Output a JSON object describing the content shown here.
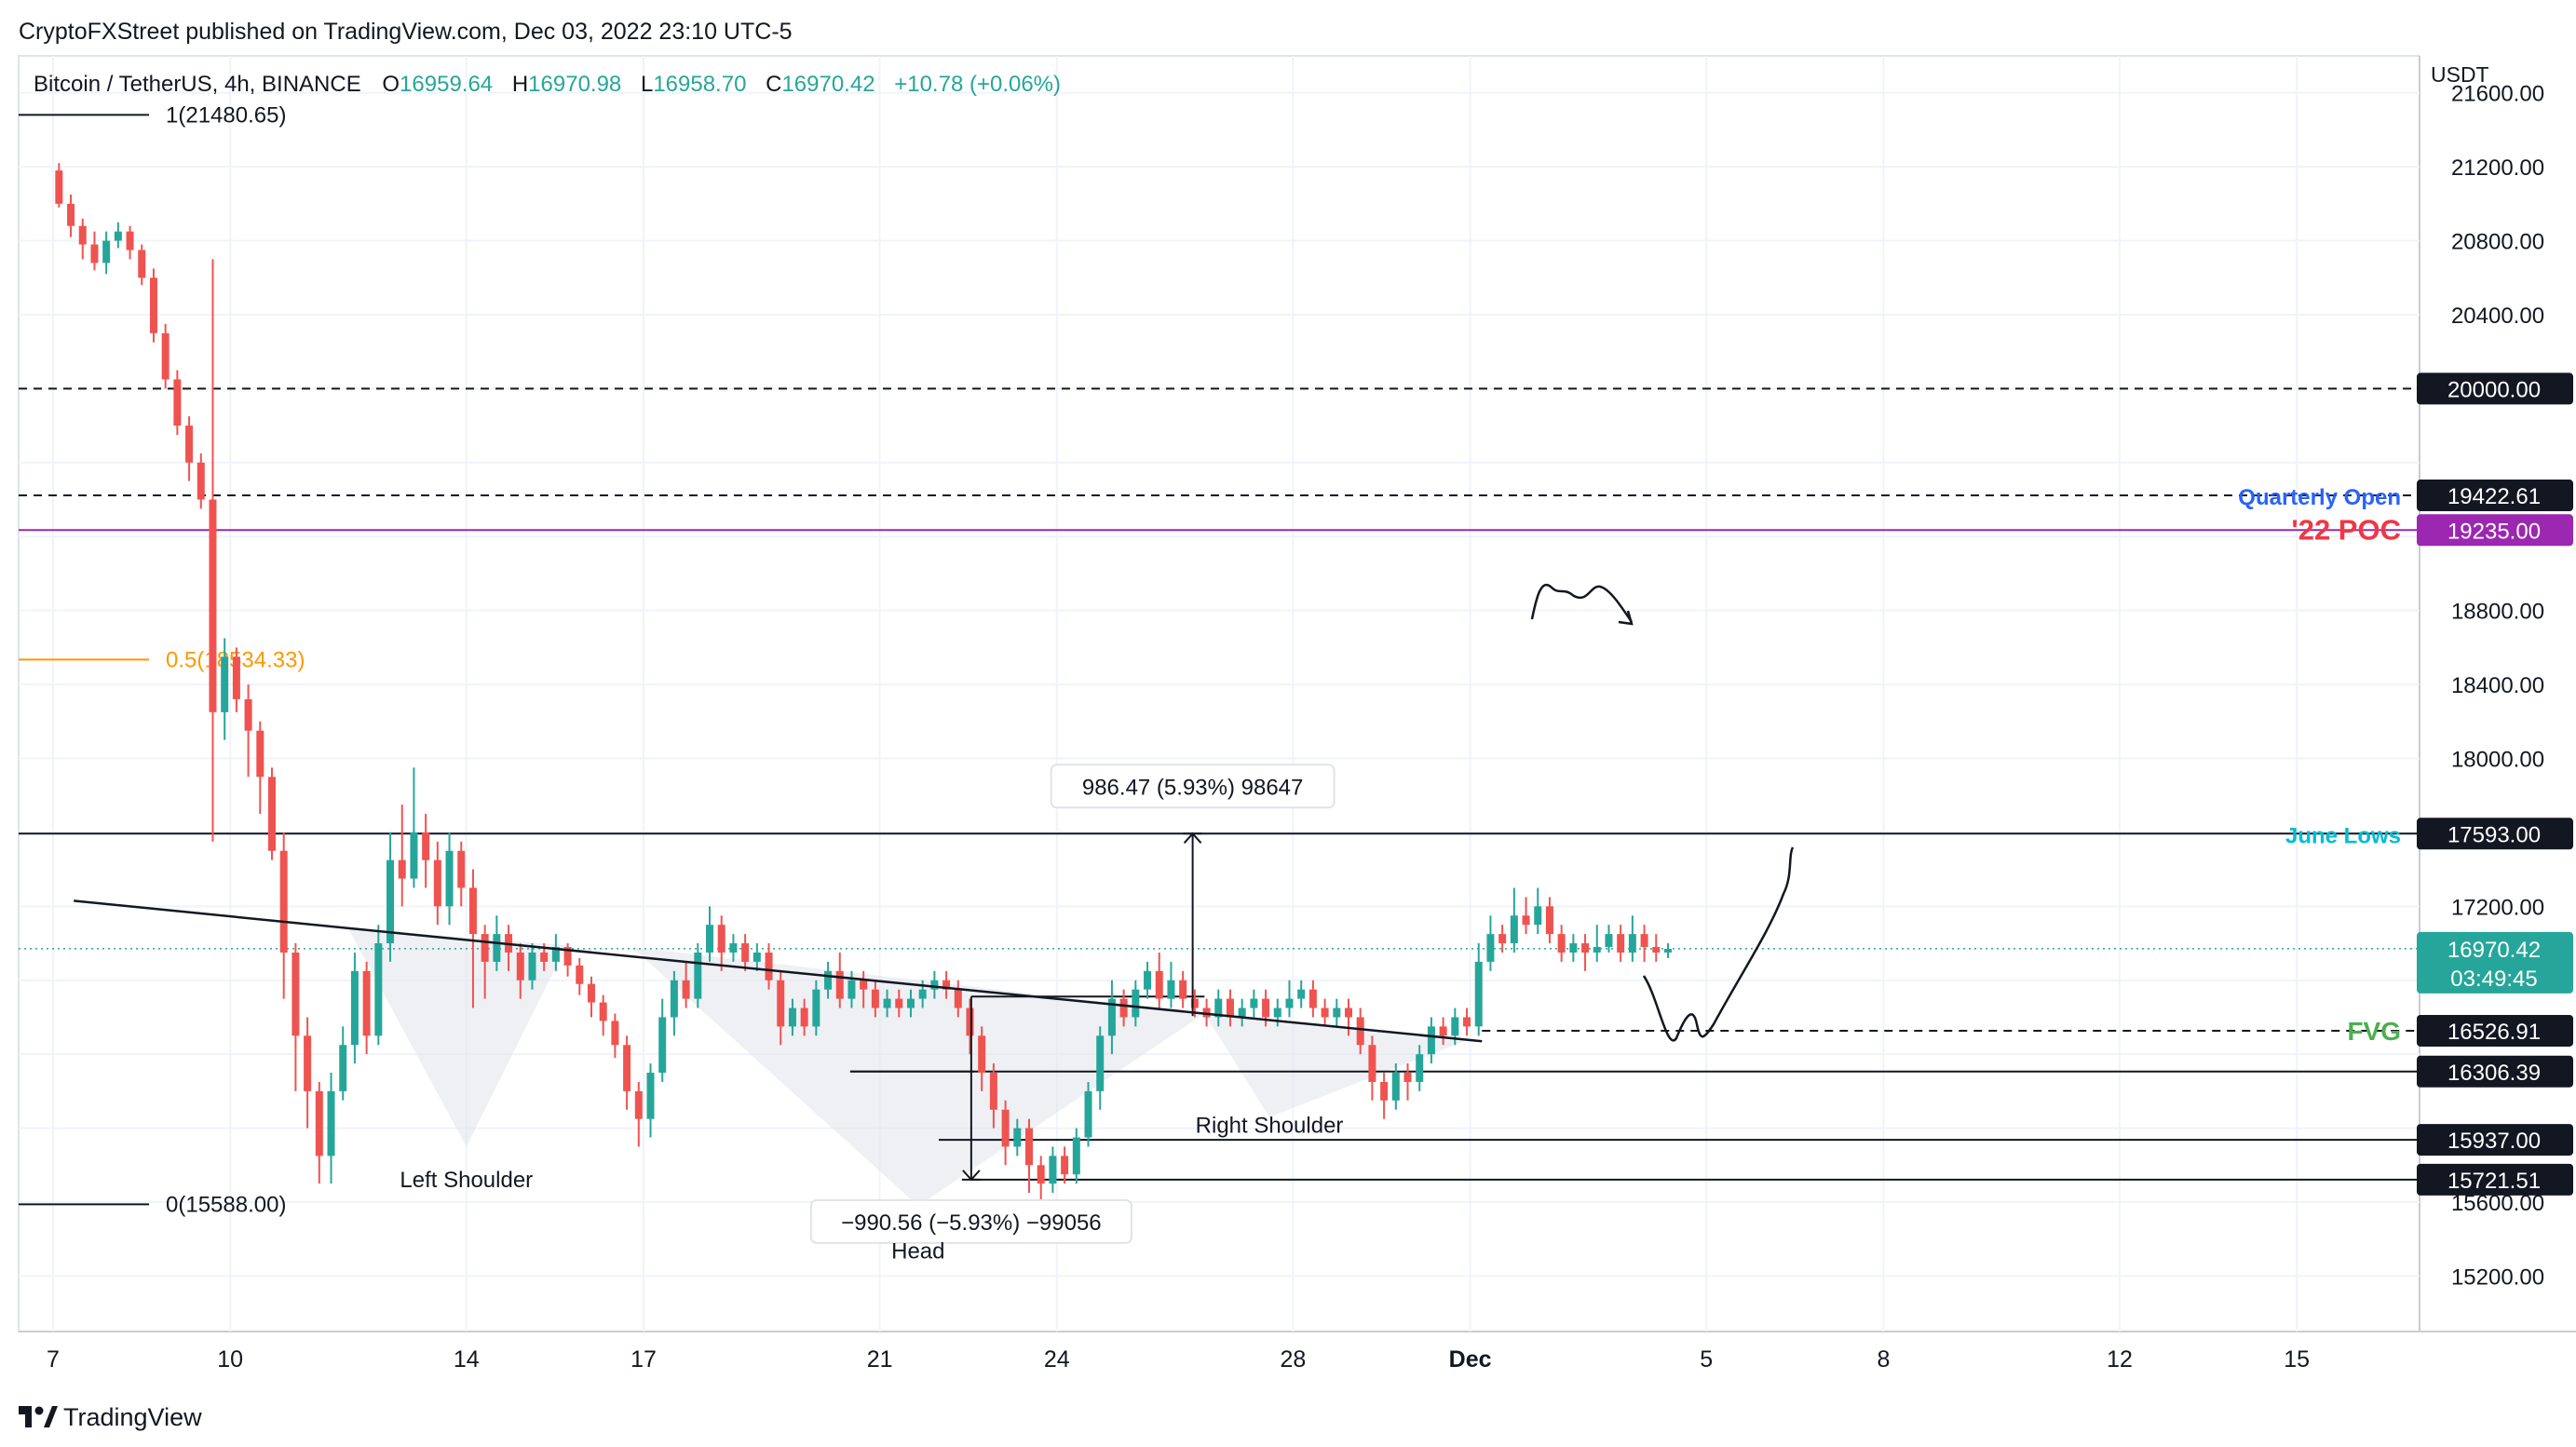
{
  "header": {
    "publisher": "CryptoFXStreet published on TradingView.com, Dec 03, 2022 23:10 UTC-5",
    "symbol": "Bitcoin / TetherUS, 4h, BINANCE",
    "o_label": "O",
    "o_value": "16959.64",
    "h_label": "H",
    "h_value": "16970.98",
    "l_label": "L",
    "l_value": "16958.70",
    "c_label": "C",
    "c_value": "16970.42",
    "change": "+10.78 (+0.06%)"
  },
  "footer": {
    "brand": "TradingView"
  },
  "colors": {
    "up": "#26a69a",
    "down": "#ef5350",
    "poc": "#9c27b0",
    "quarterly": "#2962ff",
    "june": "#00bcd4",
    "fvg": "#4caf50",
    "fib_mid": "#ff9800",
    "poc_text": "#f23645"
  },
  "chart_data": {
    "type": "candlestick",
    "instrument": "Bitcoin / TetherUS",
    "timeframe": "4h",
    "currency": "USDT",
    "ylim": [
      14900,
      21800
    ],
    "y_ticks": [
      "21600.00",
      "21200.00",
      "20800.00",
      "20400.00",
      "18800.00",
      "18400.00",
      "18000.00",
      "17200.00",
      "15600.00",
      "15200.00"
    ],
    "x_ticks": [
      {
        "label": "7",
        "day": 7
      },
      {
        "label": "10",
        "day": 10
      },
      {
        "label": "14",
        "day": 14
      },
      {
        "label": "17",
        "day": 17
      },
      {
        "label": "21",
        "day": 21
      },
      {
        "label": "24",
        "day": 24
      },
      {
        "label": "28",
        "day": 28
      },
      {
        "label": "Dec",
        "day": 31
      },
      {
        "label": "5",
        "day": 35
      },
      {
        "label": "8",
        "day": 38
      },
      {
        "label": "12",
        "day": 42
      },
      {
        "label": "15",
        "day": 45
      }
    ],
    "price_labels": [
      {
        "value": 20000.0,
        "text": "20000.00",
        "style": "dashed"
      },
      {
        "value": 19422.61,
        "text": "19422.61",
        "style": "dashed",
        "annotation": "Quarterly Open"
      },
      {
        "value": 19235.0,
        "text": "19235.00",
        "style": "poc",
        "annotation": "'22 POC"
      },
      {
        "value": 17593.0,
        "text": "17593.00",
        "style": "solid",
        "annotation": "June Lows"
      },
      {
        "value": 16526.91,
        "text": "16526.91",
        "style": "dashed",
        "annotation": "FVG"
      },
      {
        "value": 16306.39,
        "text": "16306.39",
        "style": "solid"
      },
      {
        "value": 15937.0,
        "text": "15937.00",
        "style": "solid"
      },
      {
        "value": 15721.51,
        "text": "15721.51",
        "style": "solid"
      }
    ],
    "last_price": {
      "value": 16970.42,
      "text": "16970.42",
      "countdown": "03:49:45"
    },
    "fib": [
      {
        "label": "1(21480.65)",
        "value": 21480.65
      },
      {
        "label": "0.5(18534.33)",
        "value": 18534.33
      },
      {
        "label": "0(15588.00)",
        "value": 15588.0
      }
    ],
    "measure_up": {
      "label": "986.47 (5.93%) 98647",
      "from": 16606.53,
      "to": 17593.0,
      "day": 26.3
    },
    "measure_down": {
      "label": "−990.56 (−5.93%) −99056",
      "from": 16712.07,
      "to": 15721.51,
      "day": 22.55
    },
    "pattern_labels": [
      {
        "text": "Left Shoulder",
        "day": 14.0,
        "value": 15680
      },
      {
        "text": "Head",
        "day": 21.65,
        "value": 15295
      },
      {
        "text": "Right Shoulder",
        "day": 27.6,
        "value": 15975
      }
    ],
    "neckline": {
      "from": {
        "day": 7.35,
        "value": 17230
      },
      "to": {
        "day": 31.2,
        "value": 16470
      }
    },
    "candles": [
      [
        21180,
        21000,
        21220,
        20980
      ],
      [
        21000,
        20880,
        21050,
        20820
      ],
      [
        20880,
        20780,
        20920,
        20700
      ],
      [
        20780,
        20680,
        20850,
        20640
      ],
      [
        20680,
        20800,
        20850,
        20620
      ],
      [
        20800,
        20850,
        20900,
        20760
      ],
      [
        20850,
        20750,
        20880,
        20700
      ],
      [
        20750,
        20600,
        20780,
        20560
      ],
      [
        20600,
        20300,
        20650,
        20250
      ],
      [
        20300,
        20050,
        20350,
        20000
      ],
      [
        20050,
        19800,
        20100,
        19750
      ],
      [
        19800,
        19600,
        19850,
        19500
      ],
      [
        19600,
        19400,
        19650,
        19350
      ],
      [
        19400,
        18250,
        20700,
        17550
      ],
      [
        18250,
        18550,
        18650,
        18100
      ],
      [
        18550,
        18320,
        18600,
        18250
      ],
      [
        18320,
        18150,
        18400,
        17900
      ],
      [
        18150,
        17900,
        18200,
        17700
      ],
      [
        17900,
        17500,
        17950,
        17450
      ],
      [
        17500,
        16950,
        17600,
        16700
      ],
      [
        16950,
        16500,
        17000,
        16200
      ],
      [
        16500,
        16200,
        16600,
        16000
      ],
      [
        16200,
        15850,
        16250,
        15700
      ],
      [
        15850,
        16200,
        16300,
        15700
      ],
      [
        16200,
        16450,
        16550,
        16150
      ],
      [
        16450,
        16850,
        16950,
        16350
      ],
      [
        16850,
        16500,
        16900,
        16400
      ],
      [
        16500,
        17000,
        17100,
        16450
      ],
      [
        17000,
        17450,
        17600,
        16900
      ],
      [
        17450,
        17350,
        17750,
        17200
      ],
      [
        17350,
        17600,
        17950,
        17300
      ],
      [
        17600,
        17450,
        17700,
        17300
      ],
      [
        17450,
        17200,
        17550,
        17100
      ],
      [
        17200,
        17500,
        17600,
        17100
      ],
      [
        17500,
        17300,
        17550,
        17200
      ],
      [
        17300,
        17050,
        17400,
        16650
      ],
      [
        17050,
        16900,
        17100,
        16700
      ],
      [
        16900,
        17050,
        17150,
        16850
      ],
      [
        17050,
        16950,
        17100,
        16850
      ],
      [
        16950,
        16800,
        17000,
        16700
      ],
      [
        16800,
        16950,
        17000,
        16750
      ],
      [
        16950,
        16900,
        17000,
        16850
      ],
      [
        16900,
        16980,
        17050,
        16850
      ],
      [
        16980,
        16880,
        17000,
        16820
      ],
      [
        16880,
        16780,
        16920,
        16720
      ],
      [
        16780,
        16680,
        16820,
        16600
      ],
      [
        16680,
        16580,
        16720,
        16500
      ],
      [
        16580,
        16450,
        16620,
        16380
      ],
      [
        16450,
        16200,
        16500,
        16100
      ],
      [
        16200,
        16050,
        16250,
        15900
      ],
      [
        16050,
        16300,
        16350,
        15950
      ],
      [
        16300,
        16600,
        16700,
        16250
      ],
      [
        16600,
        16800,
        16850,
        16500
      ],
      [
        16800,
        16700,
        16900,
        16650
      ],
      [
        16700,
        16950,
        17000,
        16650
      ],
      [
        16950,
        17100,
        17200,
        16900
      ],
      [
        17100,
        16950,
        17150,
        16850
      ],
      [
        16950,
        17000,
        17050,
        16900
      ],
      [
        17000,
        16900,
        17050,
        16850
      ],
      [
        16900,
        16950,
        17000,
        16850
      ],
      [
        16950,
        16800,
        17000,
        16750
      ],
      [
        16800,
        16550,
        16850,
        16450
      ],
      [
        16550,
        16650,
        16700,
        16500
      ],
      [
        16650,
        16550,
        16700,
        16500
      ],
      [
        16550,
        16750,
        16800,
        16500
      ],
      [
        16750,
        16850,
        16900,
        16700
      ],
      [
        16850,
        16700,
        16950,
        16650
      ],
      [
        16700,
        16800,
        16850,
        16650
      ],
      [
        16800,
        16750,
        16850,
        16650
      ],
      [
        16750,
        16650,
        16800,
        16600
      ],
      [
        16650,
        16700,
        16750,
        16600
      ],
      [
        16700,
        16650,
        16750,
        16600
      ],
      [
        16650,
        16700,
        16750,
        16600
      ],
      [
        16700,
        16750,
        16800,
        16650
      ],
      [
        16750,
        16800,
        16850,
        16700
      ],
      [
        16800,
        16750,
        16850,
        16700
      ],
      [
        16750,
        16650,
        16800,
        16600
      ],
      [
        16650,
        16500,
        16700,
        16400
      ],
      [
        16500,
        16300,
        16550,
        16200
      ],
      [
        16300,
        16100,
        16350,
        16000
      ],
      [
        16100,
        15900,
        16150,
        15800
      ],
      [
        15900,
        16000,
        16050,
        15850
      ],
      [
        16000,
        15800,
        16050,
        15650
      ],
      [
        15800,
        15700,
        15850,
        15600
      ],
      [
        15700,
        15850,
        15900,
        15650
      ],
      [
        15850,
        15750,
        15900,
        15700
      ],
      [
        15750,
        15950,
        16000,
        15700
      ],
      [
        15950,
        16200,
        16250,
        15900
      ],
      [
        16200,
        16500,
        16550,
        16100
      ],
      [
        16500,
        16700,
        16800,
        16400
      ],
      [
        16700,
        16600,
        16750,
        16550
      ],
      [
        16600,
        16750,
        16800,
        16550
      ],
      [
        16750,
        16850,
        16900,
        16700
      ],
      [
        16850,
        16700,
        16950,
        16650
      ],
      [
        16700,
        16800,
        16900,
        16650
      ],
      [
        16800,
        16700,
        16850,
        16650
      ],
      [
        16700,
        16650,
        16750,
        16600
      ],
      [
        16650,
        16600,
        16700,
        16550
      ],
      [
        16600,
        16700,
        16750,
        16550
      ],
      [
        16700,
        16600,
        16750,
        16550
      ],
      [
        16600,
        16650,
        16700,
        16550
      ],
      [
        16650,
        16700,
        16750,
        16600
      ],
      [
        16700,
        16600,
        16750,
        16550
      ],
      [
        16600,
        16650,
        16700,
        16550
      ],
      [
        16650,
        16700,
        16800,
        16600
      ],
      [
        16700,
        16750,
        16800,
        16650
      ],
      [
        16750,
        16650,
        16800,
        16600
      ],
      [
        16650,
        16600,
        16700,
        16550
      ],
      [
        16600,
        16650,
        16700,
        16550
      ],
      [
        16650,
        16600,
        16700,
        16500
      ],
      [
        16600,
        16450,
        16650,
        16400
      ],
      [
        16450,
        16250,
        16500,
        16150
      ],
      [
        16250,
        16150,
        16300,
        16050
      ],
      [
        16150,
        16300,
        16350,
        16100
      ],
      [
        16300,
        16250,
        16350,
        16150
      ],
      [
        16250,
        16400,
        16450,
        16200
      ],
      [
        16400,
        16550,
        16600,
        16350
      ],
      [
        16550,
        16500,
        16600,
        16450
      ],
      [
        16500,
        16600,
        16650,
        16450
      ],
      [
        16600,
        16550,
        16650,
        16500
      ],
      [
        16550,
        16900,
        17000,
        16500
      ],
      [
        16900,
        17050,
        17150,
        16850
      ],
      [
        17050,
        17000,
        17100,
        16950
      ],
      [
        17000,
        17150,
        17300,
        16950
      ],
      [
        17150,
        17100,
        17250,
        17050
      ],
      [
        17100,
        17200,
        17300,
        17050
      ],
      [
        17200,
        17050,
        17250,
        17000
      ],
      [
        17050,
        16950,
        17100,
        16900
      ],
      [
        16950,
        17000,
        17050,
        16900
      ],
      [
        17000,
        16950,
        17050,
        16850
      ],
      [
        16950,
        16980,
        17100,
        16900
      ],
      [
        16980,
        17050,
        17100,
        16950
      ],
      [
        17050,
        16950,
        17100,
        16900
      ],
      [
        16950,
        17050,
        17150,
        16900
      ],
      [
        17050,
        16980,
        17100,
        16900
      ],
      [
        16980,
        16950,
        17050,
        16900
      ],
      [
        16950,
        16970,
        17000,
        16920
      ]
    ]
  }
}
